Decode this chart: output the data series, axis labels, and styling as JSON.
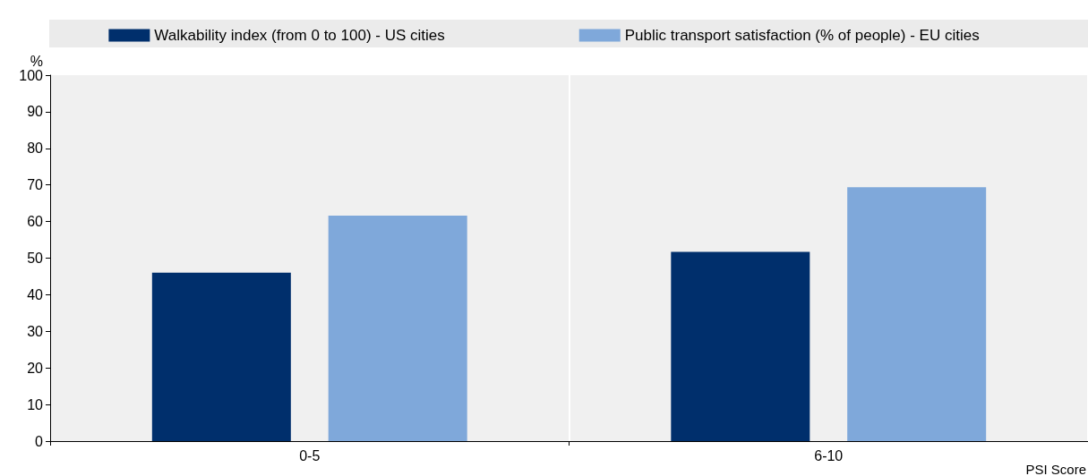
{
  "chart_data": {
    "type": "bar",
    "ylabel": "%",
    "xlabel": "PSI Score",
    "categories": [
      "0-5",
      "6-10"
    ],
    "series": [
      {
        "name": "Walkability index (from 0 to 100) - US cities",
        "color": "#002f6c",
        "values": [
          46,
          51.7
        ]
      },
      {
        "name": "Public transport satisfaction (% of people) - EU cities",
        "color": "#7fa8da",
        "values": [
          61.6,
          69.4
        ]
      }
    ],
    "ylim": [
      0,
      100
    ],
    "yticks": [
      0,
      10,
      20,
      30,
      40,
      50,
      60,
      70,
      80,
      90,
      100
    ],
    "grid": "x",
    "legend": "top"
  }
}
